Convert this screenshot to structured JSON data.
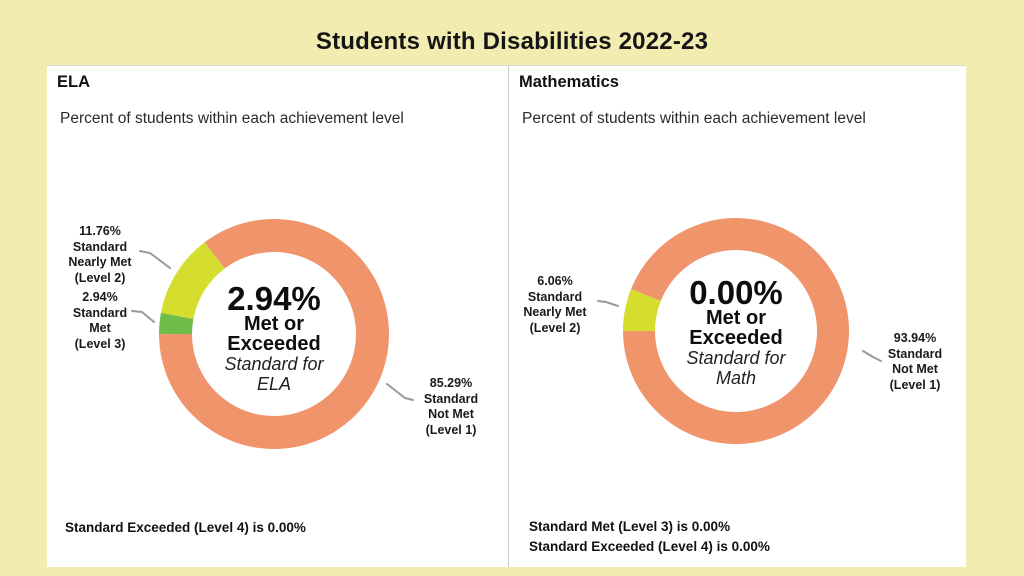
{
  "page": {
    "title": "Students with Disabilities 2022-23",
    "background_color": "#F2ECB1"
  },
  "panels": [
    {
      "heading": "ELA",
      "subtitle": "Percent of students within each achievement level",
      "center": {
        "value": "2.94%",
        "bold1": "Met or",
        "bold2": "Exceeded",
        "italic1": "Standard for",
        "italic2": "ELA"
      },
      "callouts": [
        {
          "lines": [
            "11.76%",
            "Standard",
            "Nearly Met",
            "(Level 2)"
          ]
        },
        {
          "lines": [
            "2.94%",
            "Standard",
            "Met",
            "(Level 3)"
          ]
        },
        {
          "lines": [
            "85.29%",
            "Standard",
            "Not Met",
            "(Level 1)"
          ]
        }
      ],
      "notes": [
        "Standard Exceeded (Level 4) is 0.00%"
      ]
    },
    {
      "heading": "Mathematics",
      "subtitle": "Percent of students within each achievement level",
      "center": {
        "value": "0.00%",
        "bold1": "Met or",
        "bold2": "Exceeded",
        "italic1": "Standard for",
        "italic2": "Math"
      },
      "callouts": [
        {
          "lines": [
            "6.06%",
            "Standard",
            "Nearly Met",
            "(Level 2)"
          ]
        },
        {
          "lines": [
            "93.94%",
            "Standard",
            "Not Met",
            "(Level 1)"
          ]
        }
      ],
      "notes": [
        "Standard Met (Level 3) is 0.00%",
        "Standard Exceeded (Level 4) is 0.00%"
      ]
    }
  ],
  "chart_data": [
    {
      "type": "donut",
      "title": "ELA",
      "subtitle": "Percent of students within each achievement level",
      "center_label": "2.94% Met or Exceeded Standard for ELA",
      "start_angle_deg": 270,
      "direction": "clockwise",
      "segments": [
        {
          "label": "Standard Met (Level 3)",
          "value_pct": 2.94,
          "color": "#6FBC49"
        },
        {
          "label": "Standard Nearly Met (Level 2)",
          "value_pct": 11.76,
          "color": "#D5DD2E"
        },
        {
          "label": "Standard Not Met (Level 1)",
          "value_pct": 85.29,
          "color": "#F0946B"
        }
      ],
      "zero_segments": [
        {
          "label": "Standard Exceeded (Level 4)",
          "value_pct": 0.0
        }
      ]
    },
    {
      "type": "donut",
      "title": "Mathematics",
      "subtitle": "Percent of students within each achievement level",
      "center_label": "0.00% Met or Exceeded Standard for Math",
      "start_angle_deg": 270,
      "direction": "clockwise",
      "segments": [
        {
          "label": "Standard Nearly Met (Level 2)",
          "value_pct": 6.06,
          "color": "#D5DD2E"
        },
        {
          "label": "Standard Not Met (Level 1)",
          "value_pct": 93.94,
          "color": "#F0946B"
        }
      ],
      "zero_segments": [
        {
          "label": "Standard Met (Level 3)",
          "value_pct": 0.0
        },
        {
          "label": "Standard Exceeded (Level 4)",
          "value_pct": 0.0
        }
      ]
    }
  ]
}
